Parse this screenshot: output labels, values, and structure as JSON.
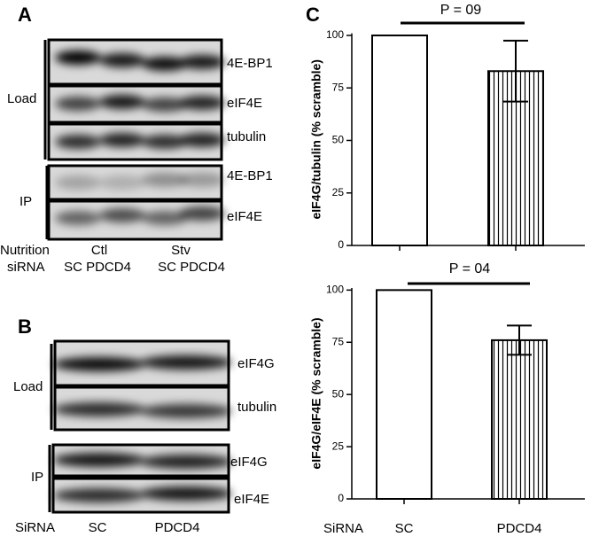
{
  "panel_a": {
    "label": "A",
    "blots": [
      "4E-BP1",
      "eIF4E",
      "tubulin",
      "4E-BP1",
      "eIF4E"
    ],
    "groups": [
      "Load",
      "IP"
    ],
    "rows": [
      "Nutrition",
      "siRNA"
    ],
    "conditions": [
      "Ctl",
      "Stv"
    ],
    "lanes": [
      "SC PDCD4",
      "SC PDCD4"
    ]
  },
  "panel_b": {
    "label": "B",
    "blots": [
      "eIF4G",
      "tubulin",
      "eIF4G",
      "eIF4E"
    ],
    "groups": [
      "Load",
      "IP"
    ],
    "row": "SiRNA",
    "lanes": [
      "SC",
      "PDCD4"
    ]
  },
  "panel_c": {
    "label": "C"
  },
  "chart_data": [
    {
      "type": "bar",
      "ylabel": "eIF4G/tubulin (% scramble)",
      "annotation": "P = 09",
      "categories": [
        null,
        null
      ],
      "values": [
        100,
        83
      ],
      "errors": [
        null,
        14.5
      ],
      "hatched": [
        false,
        true
      ],
      "color": "#ffffff",
      "ylim": [
        0,
        101
      ],
      "yticks": [
        0,
        25,
        50,
        75,
        100
      ]
    },
    {
      "type": "bar",
      "ylabel": "eIF4G/eIF4E (% scramble)",
      "annotation": "P = 04",
      "xlabel": "SiRNA",
      "categories": [
        "SC",
        "PDCD4"
      ],
      "values": [
        100,
        76
      ],
      "errors": [
        null,
        7
      ],
      "hatched": [
        false,
        true
      ],
      "color": "#ffffff",
      "ylim": [
        0,
        101
      ],
      "yticks": [
        0,
        25,
        50,
        75,
        100
      ]
    }
  ]
}
